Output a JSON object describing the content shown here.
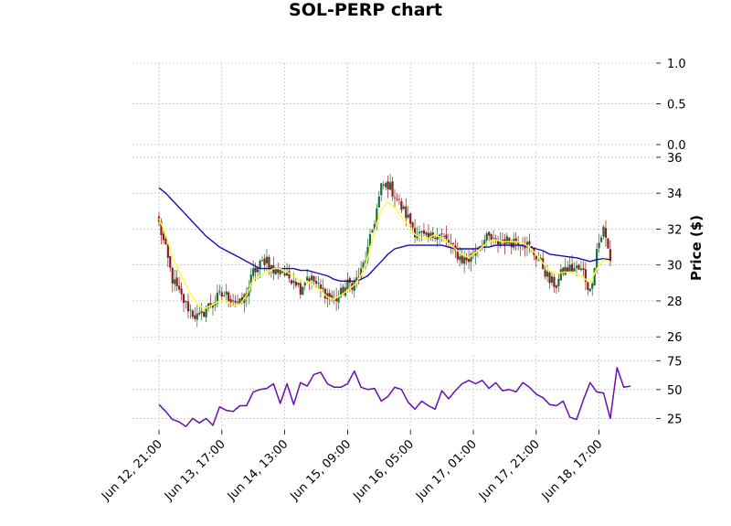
{
  "chart_data": {
    "type": "candlestick",
    "title": "SOL-PERP chart",
    "ylabel": "Price ($)",
    "x_tick_labels": [
      "Jun 12, 21:00",
      "Jun 13, 17:00",
      "Jun 14, 13:00",
      "Jun 15, 09:00",
      "Jun 16, 05:00",
      "Jun 17, 01:00",
      "Jun 17, 21:00",
      "Jun 18, 17:00"
    ],
    "colors": {
      "up": "#1e6b3a",
      "down": "#8b1f1f",
      "ma_short": "#ffff33",
      "ma_long": "#1a0fb0",
      "rsi": "#6a0dad",
      "grid": "#b0b0b0"
    },
    "panels": {
      "top": {
        "ylim": [
          0,
          1
        ],
        "yticks": [
          "0.0",
          "0.5",
          "1.0"
        ]
      },
      "price": {
        "ylim": [
          25.5,
          36.2
        ],
        "yticks": [
          "26",
          "28",
          "30",
          "32",
          "34",
          "36"
        ]
      },
      "rsi": {
        "ylim": [
          15,
          80
        ],
        "yticks": [
          "25",
          "50",
          "75"
        ]
      }
    },
    "series": {
      "price_close": [
        [
          0,
          32.3
        ],
        [
          3,
          30.8
        ],
        [
          6,
          29.2
        ],
        [
          9,
          28.4
        ],
        [
          12,
          27.8
        ],
        [
          15,
          27.3
        ],
        [
          18,
          27.0
        ],
        [
          21,
          27.6
        ],
        [
          24,
          27.9
        ],
        [
          27,
          28.3
        ],
        [
          30,
          28.3
        ],
        [
          33,
          28.1
        ],
        [
          36,
          27.8
        ],
        [
          39,
          28.4
        ],
        [
          42,
          29.6
        ],
        [
          45,
          30.0
        ],
        [
          48,
          30.4
        ],
        [
          51,
          29.6
        ],
        [
          54,
          29.8
        ],
        [
          57,
          29.3
        ],
        [
          60,
          29.3
        ],
        [
          63,
          28.7
        ],
        [
          66,
          29.4
        ],
        [
          69,
          29.1
        ],
        [
          72,
          28.6
        ],
        [
          75,
          28.4
        ],
        [
          78,
          28.0
        ],
        [
          81,
          28.4
        ],
        [
          84,
          28.9
        ],
        [
          87,
          29.0
        ],
        [
          90,
          29.6
        ],
        [
          93,
          30.8
        ],
        [
          96,
          32.5
        ],
        [
          99,
          34.3
        ],
        [
          102,
          34.5
        ],
        [
          105,
          33.9
        ],
        [
          108,
          33.2
        ],
        [
          111,
          32.6
        ],
        [
          114,
          31.9
        ],
        [
          117,
          31.6
        ],
        [
          120,
          31.4
        ],
        [
          123,
          31.8
        ],
        [
          126,
          31.6
        ],
        [
          129,
          31.2
        ],
        [
          132,
          30.7
        ],
        [
          135,
          30.3
        ],
        [
          138,
          30.3
        ],
        [
          141,
          30.9
        ],
        [
          144,
          31.3
        ],
        [
          147,
          31.5
        ],
        [
          150,
          31.2
        ],
        [
          153,
          31.4
        ],
        [
          156,
          31.3
        ],
        [
          159,
          31.4
        ],
        [
          162,
          31.3
        ],
        [
          165,
          31.0
        ],
        [
          168,
          30.5
        ],
        [
          171,
          29.9
        ],
        [
          174,
          29.1
        ],
        [
          177,
          28.9
        ],
        [
          180,
          29.7
        ],
        [
          183,
          29.8
        ],
        [
          186,
          29.8
        ],
        [
          189,
          29.6
        ],
        [
          192,
          28.5
        ],
        [
          195,
          30.9
        ],
        [
          198,
          32.0
        ],
        [
          201,
          30.3
        ]
      ],
      "ma_short": [
        [
          0,
          32.6
        ],
        [
          3,
          31.7
        ],
        [
          6,
          30.5
        ],
        [
          9,
          29.6
        ],
        [
          12,
          28.9
        ],
        [
          15,
          28.2
        ],
        [
          18,
          27.7
        ],
        [
          21,
          27.6
        ],
        [
          24,
          27.8
        ],
        [
          27,
          28.0
        ],
        [
          30,
          28.0
        ],
        [
          33,
          27.7
        ],
        [
          36,
          27.8
        ],
        [
          39,
          28.3
        ],
        [
          42,
          29.2
        ],
        [
          45,
          29.4
        ],
        [
          48,
          29.6
        ],
        [
          51,
          29.8
        ],
        [
          54,
          29.8
        ],
        [
          57,
          29.6
        ],
        [
          60,
          29.4
        ],
        [
          63,
          29.1
        ],
        [
          66,
          29.1
        ],
        [
          69,
          28.8
        ],
        [
          72,
          28.6
        ],
        [
          75,
          28.2
        ],
        [
          78,
          28.1
        ],
        [
          81,
          28.3
        ],
        [
          84,
          28.6
        ],
        [
          87,
          28.9
        ],
        [
          90,
          29.4
        ],
        [
          93,
          30.4
        ],
        [
          96,
          31.9
        ],
        [
          99,
          33.1
        ],
        [
          102,
          33.5
        ],
        [
          105,
          33.2
        ],
        [
          108,
          32.7
        ],
        [
          111,
          32.2
        ],
        [
          114,
          31.7
        ],
        [
          117,
          31.5
        ],
        [
          120,
          31.5
        ],
        [
          123,
          31.7
        ],
        [
          126,
          31.5
        ],
        [
          129,
          31.2
        ],
        [
          132,
          30.9
        ],
        [
          135,
          30.6
        ],
        [
          138,
          30.4
        ],
        [
          141,
          30.7
        ],
        [
          144,
          31.0
        ],
        [
          147,
          31.3
        ],
        [
          150,
          31.4
        ],
        [
          153,
          31.3
        ],
        [
          156,
          31.3
        ],
        [
          159,
          31.3
        ],
        [
          162,
          31.2
        ],
        [
          165,
          31.0
        ],
        [
          168,
          30.6
        ],
        [
          171,
          30.1
        ],
        [
          174,
          29.7
        ],
        [
          177,
          29.5
        ],
        [
          180,
          29.6
        ],
        [
          183,
          29.6
        ],
        [
          186,
          29.5
        ],
        [
          189,
          29.3
        ],
        [
          192,
          29.0
        ],
        [
          195,
          29.8
        ],
        [
          198,
          30.3
        ],
        [
          201,
          30.2
        ]
      ],
      "ma_long": [
        [
          0,
          34.3
        ],
        [
          3,
          34.0
        ],
        [
          6,
          33.6
        ],
        [
          9,
          33.2
        ],
        [
          12,
          32.8
        ],
        [
          15,
          32.4
        ],
        [
          18,
          32.0
        ],
        [
          21,
          31.6
        ],
        [
          24,
          31.3
        ],
        [
          27,
          31.0
        ],
        [
          30,
          30.8
        ],
        [
          33,
          30.6
        ],
        [
          36,
          30.4
        ],
        [
          39,
          30.2
        ],
        [
          42,
          30.0
        ],
        [
          45,
          29.8
        ],
        [
          48,
          29.8
        ],
        [
          51,
          29.8
        ],
        [
          54,
          29.8
        ],
        [
          57,
          29.8
        ],
        [
          60,
          29.8
        ],
        [
          63,
          29.7
        ],
        [
          66,
          29.7
        ],
        [
          69,
          29.6
        ],
        [
          72,
          29.5
        ],
        [
          75,
          29.4
        ],
        [
          78,
          29.2
        ],
        [
          81,
          29.1
        ],
        [
          84,
          29.1
        ],
        [
          87,
          29.1
        ],
        [
          90,
          29.2
        ],
        [
          93,
          29.4
        ],
        [
          96,
          29.8
        ],
        [
          99,
          30.2
        ],
        [
          102,
          30.6
        ],
        [
          105,
          30.9
        ],
        [
          108,
          31.0
        ],
        [
          111,
          31.1
        ],
        [
          114,
          31.1
        ],
        [
          117,
          31.1
        ],
        [
          120,
          31.1
        ],
        [
          123,
          31.1
        ],
        [
          126,
          31.1
        ],
        [
          129,
          31.0
        ],
        [
          132,
          30.9
        ],
        [
          135,
          30.9
        ],
        [
          138,
          30.9
        ],
        [
          141,
          30.9
        ],
        [
          144,
          31.0
        ],
        [
          147,
          31.0
        ],
        [
          150,
          31.1
        ],
        [
          153,
          31.1
        ],
        [
          156,
          31.1
        ],
        [
          159,
          31.1
        ],
        [
          162,
          31.1
        ],
        [
          165,
          31.0
        ],
        [
          168,
          30.9
        ],
        [
          171,
          30.8
        ],
        [
          174,
          30.6
        ],
        [
          177,
          30.55
        ],
        [
          180,
          30.5
        ],
        [
          183,
          30.45
        ],
        [
          186,
          30.4
        ],
        [
          189,
          30.3
        ],
        [
          192,
          30.2
        ],
        [
          195,
          30.3
        ],
        [
          198,
          30.35
        ],
        [
          201,
          30.3
        ]
      ],
      "rsi": [
        [
          0,
          37
        ],
        [
          3,
          31
        ],
        [
          6,
          24
        ],
        [
          9,
          22
        ],
        [
          12,
          18
        ],
        [
          15,
          25
        ],
        [
          18,
          21
        ],
        [
          21,
          25
        ],
        [
          24,
          19
        ],
        [
          27,
          35
        ],
        [
          30,
          32
        ],
        [
          33,
          31
        ],
        [
          36,
          36
        ],
        [
          39,
          36
        ],
        [
          42,
          48
        ],
        [
          45,
          50
        ],
        [
          48,
          51
        ],
        [
          51,
          55
        ],
        [
          54,
          38
        ],
        [
          57,
          55
        ],
        [
          60,
          37
        ],
        [
          63,
          56
        ],
        [
          66,
          53
        ],
        [
          69,
          63
        ],
        [
          72,
          65
        ],
        [
          75,
          55
        ],
        [
          78,
          52
        ],
        [
          81,
          52
        ],
        [
          84,
          55
        ],
        [
          87,
          66
        ],
        [
          90,
          52
        ],
        [
          93,
          50
        ],
        [
          96,
          51
        ],
        [
          99,
          40
        ],
        [
          102,
          44
        ],
        [
          105,
          52
        ],
        [
          108,
          50
        ],
        [
          111,
          39
        ],
        [
          114,
          33
        ],
        [
          117,
          40
        ],
        [
          120,
          36
        ],
        [
          123,
          33
        ],
        [
          126,
          49
        ],
        [
          129,
          42
        ],
        [
          132,
          49
        ],
        [
          135,
          55
        ],
        [
          138,
          58
        ],
        [
          141,
          55
        ],
        [
          144,
          58
        ],
        [
          147,
          51
        ],
        [
          150,
          56
        ],
        [
          153,
          49
        ],
        [
          156,
          50
        ],
        [
          159,
          48
        ],
        [
          162,
          56
        ],
        [
          165,
          52
        ],
        [
          168,
          46
        ],
        [
          171,
          43
        ],
        [
          174,
          37
        ],
        [
          177,
          36
        ],
        [
          180,
          40
        ],
        [
          183,
          26
        ],
        [
          186,
          24
        ],
        [
          189,
          41
        ],
        [
          192,
          56
        ],
        [
          195,
          48
        ],
        [
          198,
          47
        ],
        [
          201,
          25
        ],
        [
          204,
          69
        ],
        [
          207,
          52
        ],
        [
          210,
          53
        ]
      ]
    }
  }
}
